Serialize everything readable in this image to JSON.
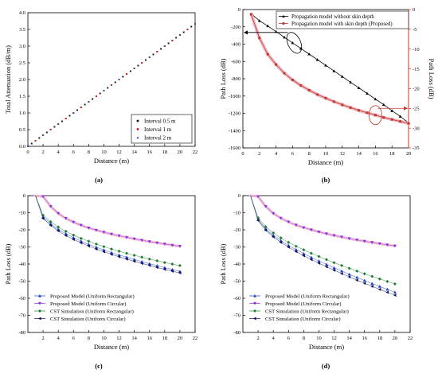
{
  "chart_data": [
    {
      "panel_label": "(a)",
      "type": "scatter",
      "xlabel": "Distance (m)",
      "ylabel": "Total Attenuation (dB/m)",
      "xlim": [
        0,
        22
      ],
      "ylim": [
        0,
        4.0
      ],
      "xticks": [
        "0",
        "2",
        "4",
        "6",
        "8",
        "10",
        "12",
        "14",
        "16",
        "18",
        "20",
        "22"
      ],
      "yticks": [
        "0.0",
        "0.5",
        "1.0",
        "1.5",
        "2.0",
        "2.5",
        "3.0",
        "3.5",
        "4.0"
      ],
      "legend_position": "bottom-right",
      "series": [
        {
          "name": "Interval 0.5 m",
          "color": "#111111",
          "marker": "square",
          "step": 0.5,
          "slope": 0.1667
        },
        {
          "name": "Interval 1 m",
          "color": "#dd2222",
          "marker": "circle",
          "step": 1,
          "slope": 0.1667
        },
        {
          "name": "Interval 2 m",
          "color": "#2255dd",
          "marker": "triangle",
          "step": 2,
          "slope": 0.1667
        }
      ],
      "x_range": [
        0,
        22
      ]
    },
    {
      "panel_label": "(b)",
      "type": "line",
      "xlabel": "Distance (m)",
      "ylabel": "Path Loss (dB)",
      "ylabel_right": "Path Loss (dB)",
      "xlim": [
        0,
        20
      ],
      "ylim": [
        -1600,
        0
      ],
      "ylim_right": [
        -35,
        0
      ],
      "xticks": [
        "0",
        "2",
        "4",
        "6",
        "8",
        "10",
        "12",
        "14",
        "16",
        "18",
        "20"
      ],
      "yticks": [
        "0",
        "-200",
        "-400",
        "-600",
        "-800",
        "-1000",
        "-1200",
        "-1400",
        "-1600"
      ],
      "yticks_right": [
        "0",
        "-5",
        "-10",
        "-15",
        "-20",
        "-25",
        "-30",
        "-35"
      ],
      "legend_position": "top-right",
      "x": [
        1,
        2,
        3,
        4,
        5,
        6,
        7,
        8,
        9,
        10,
        11,
        12,
        13,
        14,
        15,
        16,
        17,
        18,
        19,
        20
      ],
      "series": [
        {
          "name": "Propagation model without skin depth",
          "color": "#000000",
          "marker": "triangle",
          "axis": "left",
          "values": [
            -50,
            -130,
            -190,
            -255,
            -320,
            -385,
            -450,
            -515,
            -580,
            -645,
            -710,
            -775,
            -840,
            -905,
            -970,
            -1035,
            -1100,
            -1170,
            -1235,
            -1310
          ]
        },
        {
          "name": "Propagation model with skin depth (Proposed)",
          "color": "#c0392b",
          "marker": "square",
          "axis": "right",
          "values": [
            -1.2,
            -7.2,
            -11.3,
            -13.9,
            -16.1,
            -17.8,
            -19.2,
            -20.4,
            -21.5,
            -22.4,
            -23.3,
            -24.1,
            -24.8,
            -25.5,
            -26.1,
            -26.7,
            -27.3,
            -27.8,
            -28.3,
            -28.8
          ]
        }
      ]
    },
    {
      "panel_label": "(c)",
      "type": "line",
      "xlabel": "Distance (m)",
      "ylabel": "Path Loss (dB)",
      "xlim": [
        0,
        22
      ],
      "ylim": [
        -80,
        0
      ],
      "xticks": [
        "2",
        "4",
        "6",
        "8",
        "10",
        "12",
        "14",
        "16",
        "18",
        "20",
        "22"
      ],
      "yticks": [
        "0",
        "-10",
        "-20",
        "-30",
        "-40",
        "-50",
        "-60",
        "-70",
        "-80"
      ],
      "legend_position": "bottom-left",
      "x": [
        1,
        2,
        3,
        4,
        5,
        6,
        7,
        8,
        9,
        10,
        11,
        12,
        13,
        14,
        15,
        16,
        17,
        18,
        19,
        20
      ],
      "series": [
        {
          "name": "Proposed Model (Uniform Rectangular)",
          "color": "#1a3fc7",
          "marker": "triangle-up",
          "values": [
            0,
            -12.5,
            -16.5,
            -19.7,
            -22.3,
            -24.6,
            -26.6,
            -28.5,
            -30.2,
            -31.8,
            -33.3,
            -34.7,
            -36.0,
            -37.3,
            -38.6,
            -39.8,
            -41.0,
            -42.1,
            -43.2,
            -44.3
          ]
        },
        {
          "name": "Proposed Model (Uniform Circular)",
          "color": "#8a2be2",
          "marker": "triangle-down",
          "values": [
            0,
            -0.5,
            -6.3,
            -10.4,
            -13.3,
            -15.5,
            -17.3,
            -18.9,
            -20.2,
            -21.4,
            -22.5,
            -23.5,
            -24.4,
            -25.3,
            -26.1,
            -26.9,
            -27.6,
            -28.3,
            -29.0,
            -29.6
          ]
        },
        {
          "name": "CST Simulation (Uniform Rectangular)",
          "color": "#1e7d32",
          "marker": "diamond",
          "values": [
            0,
            -11.5,
            -15.3,
            -18.4,
            -20.9,
            -23.1,
            -25.0,
            -26.7,
            -28.3,
            -29.8,
            -31.2,
            -32.5,
            -33.7,
            -34.9,
            -36.0,
            -37.1,
            -38.1,
            -39.1,
            -40.0,
            -40.9
          ]
        },
        {
          "name": "CST Simulation (Uniform Circular)",
          "color": "#101060",
          "marker": "triangle-left",
          "values": [
            0,
            -13.3,
            -17.4,
            -20.6,
            -23.3,
            -25.6,
            -27.6,
            -29.5,
            -31.2,
            -32.8,
            -34.3,
            -35.7,
            -37.1,
            -38.4,
            -39.6,
            -40.8,
            -42.0,
            -43.1,
            -44.2,
            -45.2
          ]
        }
      ]
    },
    {
      "panel_label": "(d)",
      "type": "line",
      "xlabel": "Distance (m)",
      "ylabel": "Path Loss (dB)",
      "xlim": [
        0,
        22
      ],
      "ylim": [
        -80,
        0
      ],
      "xticks": [
        "2",
        "4",
        "6",
        "8",
        "10",
        "12",
        "14",
        "16",
        "18",
        "20",
        "22"
      ],
      "yticks": [
        "0",
        "-10",
        "-20",
        "-30",
        "-40",
        "-50",
        "-60",
        "-70",
        "-80"
      ],
      "legend_position": "bottom-left",
      "x": [
        1,
        2,
        3,
        4,
        5,
        6,
        7,
        8,
        9,
        10,
        11,
        12,
        13,
        14,
        15,
        16,
        17,
        18,
        19,
        20
      ],
      "series": [
        {
          "name": "Proposed Model (Uniform Rectangular)",
          "color": "#1a3fc7",
          "marker": "triangle-up",
          "values": [
            0,
            -14.0,
            -19.5,
            -23.2,
            -26.3,
            -29.1,
            -31.6,
            -33.9,
            -36.1,
            -38.2,
            -40.2,
            -42.2,
            -44.1,
            -46.0,
            -47.8,
            -49.6,
            -51.4,
            -53.1,
            -54.8,
            -56.5
          ]
        },
        {
          "name": "Proposed Model (Uniform Circular)",
          "color": "#8a2be2",
          "marker": "triangle-down",
          "values": [
            0,
            -0.5,
            -6.3,
            -10.4,
            -13.2,
            -15.4,
            -17.2,
            -18.7,
            -20.0,
            -21.2,
            -22.3,
            -23.3,
            -24.2,
            -25.1,
            -25.9,
            -26.7,
            -27.4,
            -28.1,
            -28.8,
            -29.4
          ]
        },
        {
          "name": "CST Simulation (Uniform Rectangular)",
          "color": "#1e7d32",
          "marker": "diamond",
          "values": [
            0,
            -13.0,
            -18.2,
            -21.8,
            -24.7,
            -27.3,
            -29.6,
            -31.7,
            -33.7,
            -35.6,
            -37.4,
            -39.2,
            -40.9,
            -42.5,
            -44.1,
            -45.7,
            -47.2,
            -48.7,
            -50.2,
            -51.6
          ]
        },
        {
          "name": "CST Simulation (Uniform Circular)",
          "color": "#101060",
          "marker": "triangle-left",
          "values": [
            0,
            -14.5,
            -20.2,
            -24.1,
            -27.3,
            -30.1,
            -32.7,
            -35.1,
            -37.4,
            -39.5,
            -41.6,
            -43.6,
            -45.6,
            -47.5,
            -49.4,
            -51.2,
            -53.0,
            -54.8,
            -56.5,
            -58.2
          ]
        }
      ]
    }
  ]
}
